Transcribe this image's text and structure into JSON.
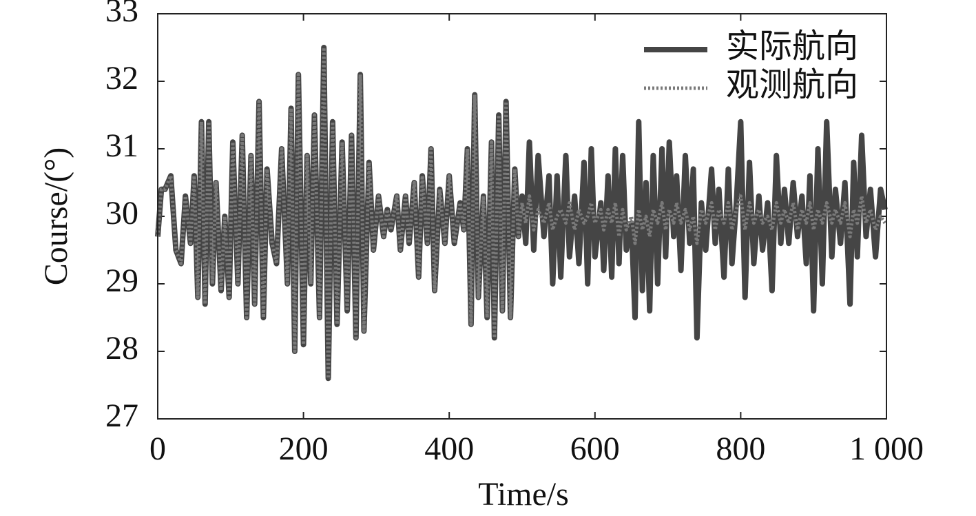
{
  "chart_data": {
    "type": "line",
    "xlabel": "Time/s",
    "ylabel": "Course/(°)",
    "x": [
      0,
      5,
      10,
      18,
      25,
      32,
      38,
      45,
      50,
      55,
      60,
      65,
      70,
      75,
      80,
      87,
      92,
      98,
      103,
      110,
      116,
      122,
      128,
      133,
      139,
      145,
      150,
      157,
      163,
      170,
      178,
      183,
      188,
      193,
      200,
      205,
      210,
      215,
      222,
      228,
      234,
      240,
      246,
      253,
      260,
      266,
      272,
      278,
      283,
      290,
      296,
      303,
      310,
      315,
      320,
      328,
      333,
      340,
      345,
      352,
      358,
      363,
      370,
      375,
      380,
      387,
      394,
      400,
      407,
      415,
      420,
      425,
      430,
      435,
      440,
      447,
      452,
      458,
      462,
      468,
      473,
      478,
      484,
      490,
      495,
      500,
      505,
      510,
      516,
      522,
      530,
      537,
      542,
      548,
      553,
      560,
      565,
      572,
      578,
      585,
      590,
      595,
      600,
      608,
      612,
      618,
      623,
      628,
      633,
      638,
      643,
      650,
      655,
      660,
      665,
      670,
      675,
      680,
      686,
      692,
      697,
      702,
      708,
      712,
      718,
      724,
      730,
      735,
      740,
      746,
      752,
      760,
      765,
      770,
      777,
      783,
      788,
      794,
      800,
      806,
      812,
      818,
      825,
      830,
      837,
      843,
      849,
      855,
      860,
      866,
      872,
      878,
      884,
      890,
      895,
      900,
      906,
      912,
      918,
      925,
      930,
      937,
      943,
      950,
      955,
      960,
      966,
      972,
      978,
      985,
      992,
      998
    ],
    "series": [
      {
        "name": "实际航向",
        "color": "#454545",
        "style": "solid",
        "values": [
          29.7,
          30.4,
          30.4,
          30.6,
          29.5,
          29.3,
          30.3,
          29.6,
          30.6,
          28.8,
          31.4,
          28.7,
          31.4,
          29.0,
          30.5,
          28.9,
          30.0,
          28.8,
          31.1,
          29.0,
          31.2,
          28.5,
          30.9,
          28.7,
          31.7,
          28.5,
          30.7,
          29.6,
          29.3,
          31.0,
          29.0,
          31.6,
          28.0,
          32.1,
          28.1,
          30.9,
          29.0,
          31.5,
          28.5,
          32.5,
          27.6,
          31.4,
          28.4,
          31.1,
          28.6,
          31.2,
          28.2,
          32.1,
          28.3,
          30.8,
          29.5,
          30.3,
          29.7,
          30.1,
          29.8,
          30.3,
          29.5,
          30.3,
          29.6,
          30.5,
          29.1,
          30.6,
          29.6,
          31.0,
          28.9,
          30.4,
          29.6,
          30.6,
          29.6,
          30.2,
          29.8,
          31.0,
          28.4,
          31.8,
          28.8,
          30.3,
          28.5,
          31.1,
          28.2,
          31.5,
          28.6,
          31.7,
          28.5,
          30.7,
          29.7,
          30.3,
          29.6,
          31.1,
          29.5,
          30.9,
          29.7,
          30.6,
          29.0,
          30.6,
          29.1,
          30.9,
          29.4,
          30.3,
          29.3,
          30.8,
          29.0,
          31.0,
          29.4,
          30.2,
          29.2,
          30.6,
          29.1,
          31.0,
          29.3,
          30.9,
          29.5,
          29.9,
          28.5,
          31.4,
          28.9,
          30.5,
          28.6,
          30.9,
          29.0,
          31.0,
          29.4,
          31.1,
          29.7,
          30.6,
          29.2,
          30.9,
          29.6,
          30.7,
          28.2,
          30.2,
          29.5,
          30.7,
          29.6,
          30.4,
          29.1,
          30.7,
          29.3,
          30.2,
          31.4,
          28.8,
          30.8,
          29.3,
          30.3,
          29.5,
          30.2,
          28.9,
          30.9,
          29.6,
          30.4,
          29.6,
          30.5,
          29.7,
          30.3,
          29.3,
          30.6,
          28.6,
          31.0,
          29.0,
          31.4,
          29.4,
          30.4,
          29.6,
          30.5,
          28.7,
          30.8,
          29.4,
          31.2,
          29.7,
          30.4,
          29.4,
          30.4,
          30.1
        ]
      },
      {
        "name": "观测航向",
        "color": "#7a7a7a",
        "style": "dotted",
        "values": [
          29.7,
          30.4,
          30.4,
          30.6,
          29.5,
          29.3,
          30.3,
          29.6,
          30.6,
          28.8,
          31.4,
          28.7,
          31.4,
          29.0,
          30.5,
          28.9,
          30.0,
          28.8,
          31.1,
          29.0,
          31.2,
          28.5,
          30.9,
          28.7,
          31.7,
          28.5,
          30.7,
          29.6,
          29.3,
          31.0,
          29.0,
          31.6,
          28.0,
          32.1,
          28.1,
          30.9,
          29.0,
          31.5,
          28.5,
          32.5,
          27.6,
          31.4,
          28.4,
          31.1,
          28.6,
          31.2,
          28.2,
          32.1,
          28.3,
          30.8,
          29.5,
          30.3,
          29.7,
          30.1,
          29.8,
          30.3,
          29.5,
          30.3,
          29.6,
          30.5,
          29.1,
          30.6,
          29.6,
          31.0,
          28.9,
          30.4,
          29.6,
          30.6,
          29.6,
          30.2,
          29.8,
          31.0,
          28.4,
          31.8,
          28.8,
          30.3,
          28.5,
          31.1,
          28.2,
          31.5,
          28.6,
          31.7,
          28.5,
          30.7,
          29.7,
          30.2,
          29.9,
          30.3,
          29.8,
          30.1,
          29.9,
          30.2,
          29.8,
          30.0,
          30.1,
          29.9,
          30.2,
          29.8,
          30.1,
          29.9,
          30.0,
          30.2,
          29.9,
          30.1,
          29.8,
          30.1,
          29.9,
          30.2,
          29.7,
          30.1,
          29.8,
          30.0,
          29.6,
          30.1,
          29.8,
          30.0,
          29.7,
          30.1,
          29.9,
          30.2,
          29.8,
          30.1,
          29.9,
          30.2,
          29.9,
          30.1,
          29.8,
          30.0,
          29.6,
          30.1,
          29.9,
          30.2,
          29.8,
          30.1,
          29.9,
          30.2,
          29.8,
          30.1,
          30.3,
          29.8,
          30.2,
          29.9,
          30.1,
          29.9,
          30.0,
          29.8,
          30.2,
          29.9,
          30.1,
          29.9,
          30.2,
          29.8,
          30.1,
          29.9,
          30.2,
          29.8,
          30.1,
          29.9,
          30.2,
          29.9,
          30.1,
          29.9,
          30.2,
          29.7,
          30.1,
          29.9,
          30.3,
          29.9,
          30.1,
          29.8,
          30.0,
          29.9
        ]
      }
    ],
    "xlim": [
      0,
      1000
    ],
    "xticks": [
      0,
      200,
      400,
      600,
      800,
      {
        "value": 1000,
        "label": "1 000"
      }
    ],
    "ylim": [
      27,
      33
    ],
    "yticks": [
      27,
      28,
      29,
      30,
      31,
      32,
      33
    ],
    "legend": "upper right"
  }
}
